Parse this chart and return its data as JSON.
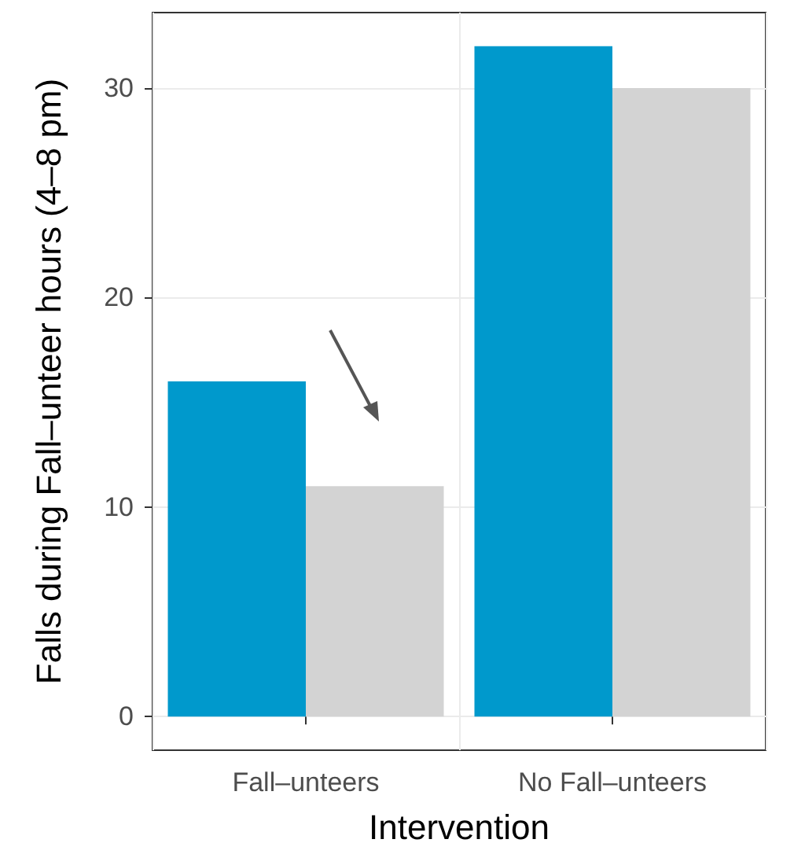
{
  "chart_data": {
    "type": "bar",
    "xlabel": "Intervention",
    "ylabel": "Falls during Fall–unteer hours (4–8 pm)",
    "categories": [
      "Fall–unteers",
      "No Fall–unteers"
    ],
    "series": [
      {
        "color": "#0099cc",
        "values": [
          16,
          32
        ]
      },
      {
        "color": "#d3d3d3",
        "values": [
          11,
          30
        ]
      }
    ],
    "ylim": [
      -1.6,
      33.6
    ],
    "yticks": [
      0,
      10,
      20,
      30
    ],
    "grid": true
  }
}
